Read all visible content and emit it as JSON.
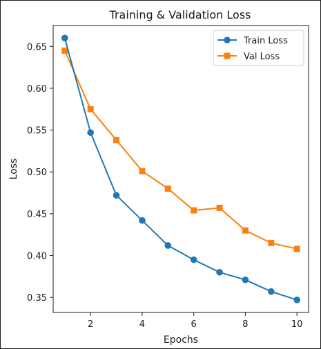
{
  "chart_data": {
    "type": "line",
    "title": "Training & Validation Loss",
    "xlabel": "Epochs",
    "ylabel": "Loss",
    "x": [
      1,
      2,
      3,
      4,
      5,
      6,
      7,
      8,
      9,
      10
    ],
    "xticks": [
      2,
      4,
      6,
      8,
      10
    ],
    "yticks": [
      0.35,
      0.4,
      0.45,
      0.5,
      0.55,
      0.6,
      0.65
    ],
    "xlim": [
      0.55,
      10.45
    ],
    "ylim": [
      0.332,
      0.675
    ],
    "grid": false,
    "legend_position": "top-right",
    "series": [
      {
        "name": "Train Loss",
        "color": "#1f77b4",
        "marker": "circle",
        "values": [
          0.66,
          0.547,
          0.472,
          0.442,
          0.412,
          0.395,
          0.38,
          0.371,
          0.357,
          0.347
        ]
      },
      {
        "name": "Val Loss",
        "color": "#ff7f0e",
        "marker": "square",
        "values": [
          0.645,
          0.575,
          0.538,
          0.501,
          0.48,
          0.454,
          0.457,
          0.43,
          0.415,
          0.408
        ]
      }
    ]
  }
}
